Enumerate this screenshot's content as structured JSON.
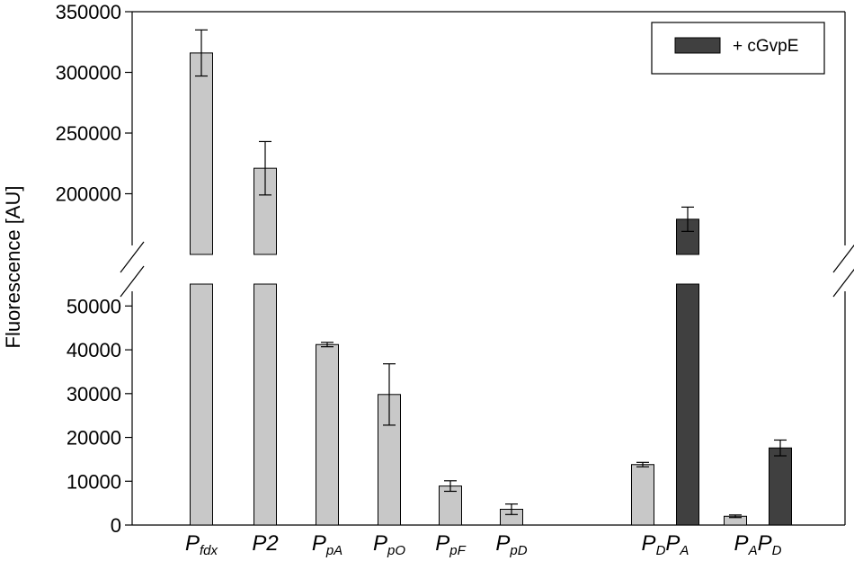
{
  "chart_data": {
    "type": "bar",
    "ylabel": "Fluorescence [AU]",
    "y_axis_break": true,
    "lower_segment_range": [
      0,
      55000
    ],
    "upper_segment_range": [
      150000,
      350000
    ],
    "lower_ticks": [
      0,
      10000,
      20000,
      30000,
      40000,
      50000
    ],
    "upper_ticks": [
      200000,
      250000,
      300000,
      350000
    ],
    "legend": {
      "label": "+ cGvpE",
      "position": "top-right"
    },
    "colors": {
      "base": "#c8c8c8",
      "cgvpe": "#404040",
      "stroke": "#000000"
    },
    "categories": [
      {
        "main": "P",
        "sub": "fdx"
      },
      {
        "main": "P2",
        "sub": ""
      },
      {
        "main": "P",
        "sub": "pA"
      },
      {
        "main": "P",
        "sub": "pO"
      },
      {
        "main": "P",
        "sub": "pF"
      },
      {
        "main": "P",
        "sub": "pD"
      },
      {
        "main": "P",
        "sub": "D",
        "main2": "P",
        "sub2": "A"
      },
      {
        "main": "P",
        "sub": "A",
        "main2": "P",
        "sub2": "D"
      }
    ],
    "series": [
      {
        "key": "base",
        "values": [
          316000,
          221000,
          41200,
          29800,
          8900,
          3600,
          13800,
          2000
        ],
        "errors": [
          19000,
          22000,
          500,
          7000,
          1200,
          1200,
          500,
          300
        ]
      },
      {
        "key": "cgvpe",
        "name": "+ cGvpE",
        "values": [
          null,
          null,
          null,
          null,
          null,
          null,
          179000,
          17600
        ],
        "errors": [
          null,
          null,
          null,
          null,
          null,
          null,
          10000,
          1800
        ]
      }
    ]
  }
}
